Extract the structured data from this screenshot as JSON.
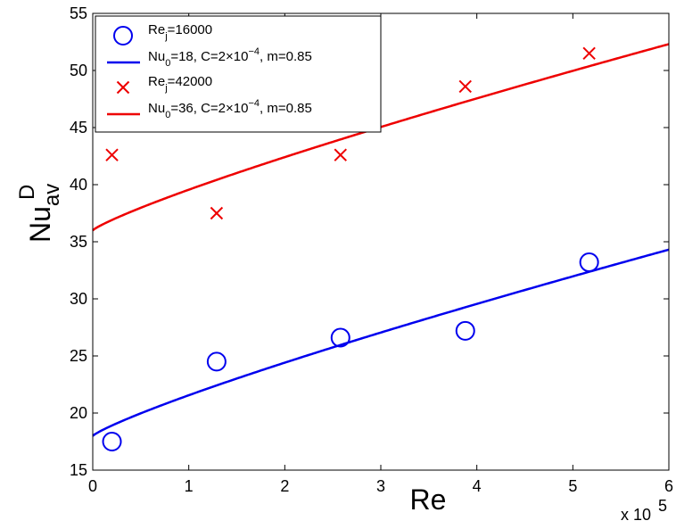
{
  "chart_data": {
    "type": "scatter",
    "xlabel": "Re",
    "ylabel_main": "Nu",
    "ylabel_sup": "D",
    "ylabel_sub": "av",
    "xlim": [
      0,
      600000
    ],
    "ylim": [
      15,
      55
    ],
    "x_tick_values": [
      0,
      100000,
      200000,
      300000,
      400000,
      500000,
      600000
    ],
    "x_tick_labels": [
      "0",
      "1",
      "2",
      "3",
      "4",
      "5",
      "6"
    ],
    "y_tick_values": [
      15,
      20,
      25,
      30,
      35,
      40,
      45,
      50,
      55
    ],
    "y_tick_labels": [
      "15",
      "20",
      "25",
      "30",
      "35",
      "40",
      "45",
      "50",
      "55"
    ],
    "x_exponent": {
      "base": "x 10",
      "power": "5"
    },
    "grid": false,
    "legend_position": "top-left",
    "colors": {
      "blue": "#0000ee",
      "red": "#ee0000"
    },
    "series": [
      {
        "kind": "markers",
        "marker": "circle",
        "color": "#0000ee",
        "legend": {
          "main": "Re",
          "sub": "j",
          "rest": "=16000"
        },
        "points": [
          {
            "x": 20000,
            "y": 17.5
          },
          {
            "x": 129000,
            "y": 24.5
          },
          {
            "x": 258000,
            "y": 26.6
          },
          {
            "x": 388000,
            "y": 27.2
          },
          {
            "x": 517000,
            "y": 33.2
          }
        ]
      },
      {
        "kind": "line",
        "color": "#0000ee",
        "legend": {
          "main": "Nu",
          "sub": "0",
          "mid": "=18, C=2×10",
          "sup": "−4",
          "rest": ", m=0.85"
        },
        "model": {
          "Nu0": 18,
          "C": 0.0002,
          "m": 0.85
        }
      },
      {
        "kind": "markers",
        "marker": "x",
        "color": "#ee0000",
        "legend": {
          "main": "Re",
          "sub": "j",
          "rest": "=42000"
        },
        "points": [
          {
            "x": 20000,
            "y": 42.6
          },
          {
            "x": 129000,
            "y": 37.5
          },
          {
            "x": 258000,
            "y": 42.6
          },
          {
            "x": 388000,
            "y": 48.6
          },
          {
            "x": 517000,
            "y": 51.5
          }
        ]
      },
      {
        "kind": "line",
        "color": "#ee0000",
        "legend": {
          "main": "Nu",
          "sub": "0",
          "mid": "=36, C=2×10",
          "sup": "−4",
          "rest": ", m=0.85"
        },
        "model": {
          "Nu0": 36,
          "C": 0.0002,
          "m": 0.85
        }
      }
    ]
  }
}
